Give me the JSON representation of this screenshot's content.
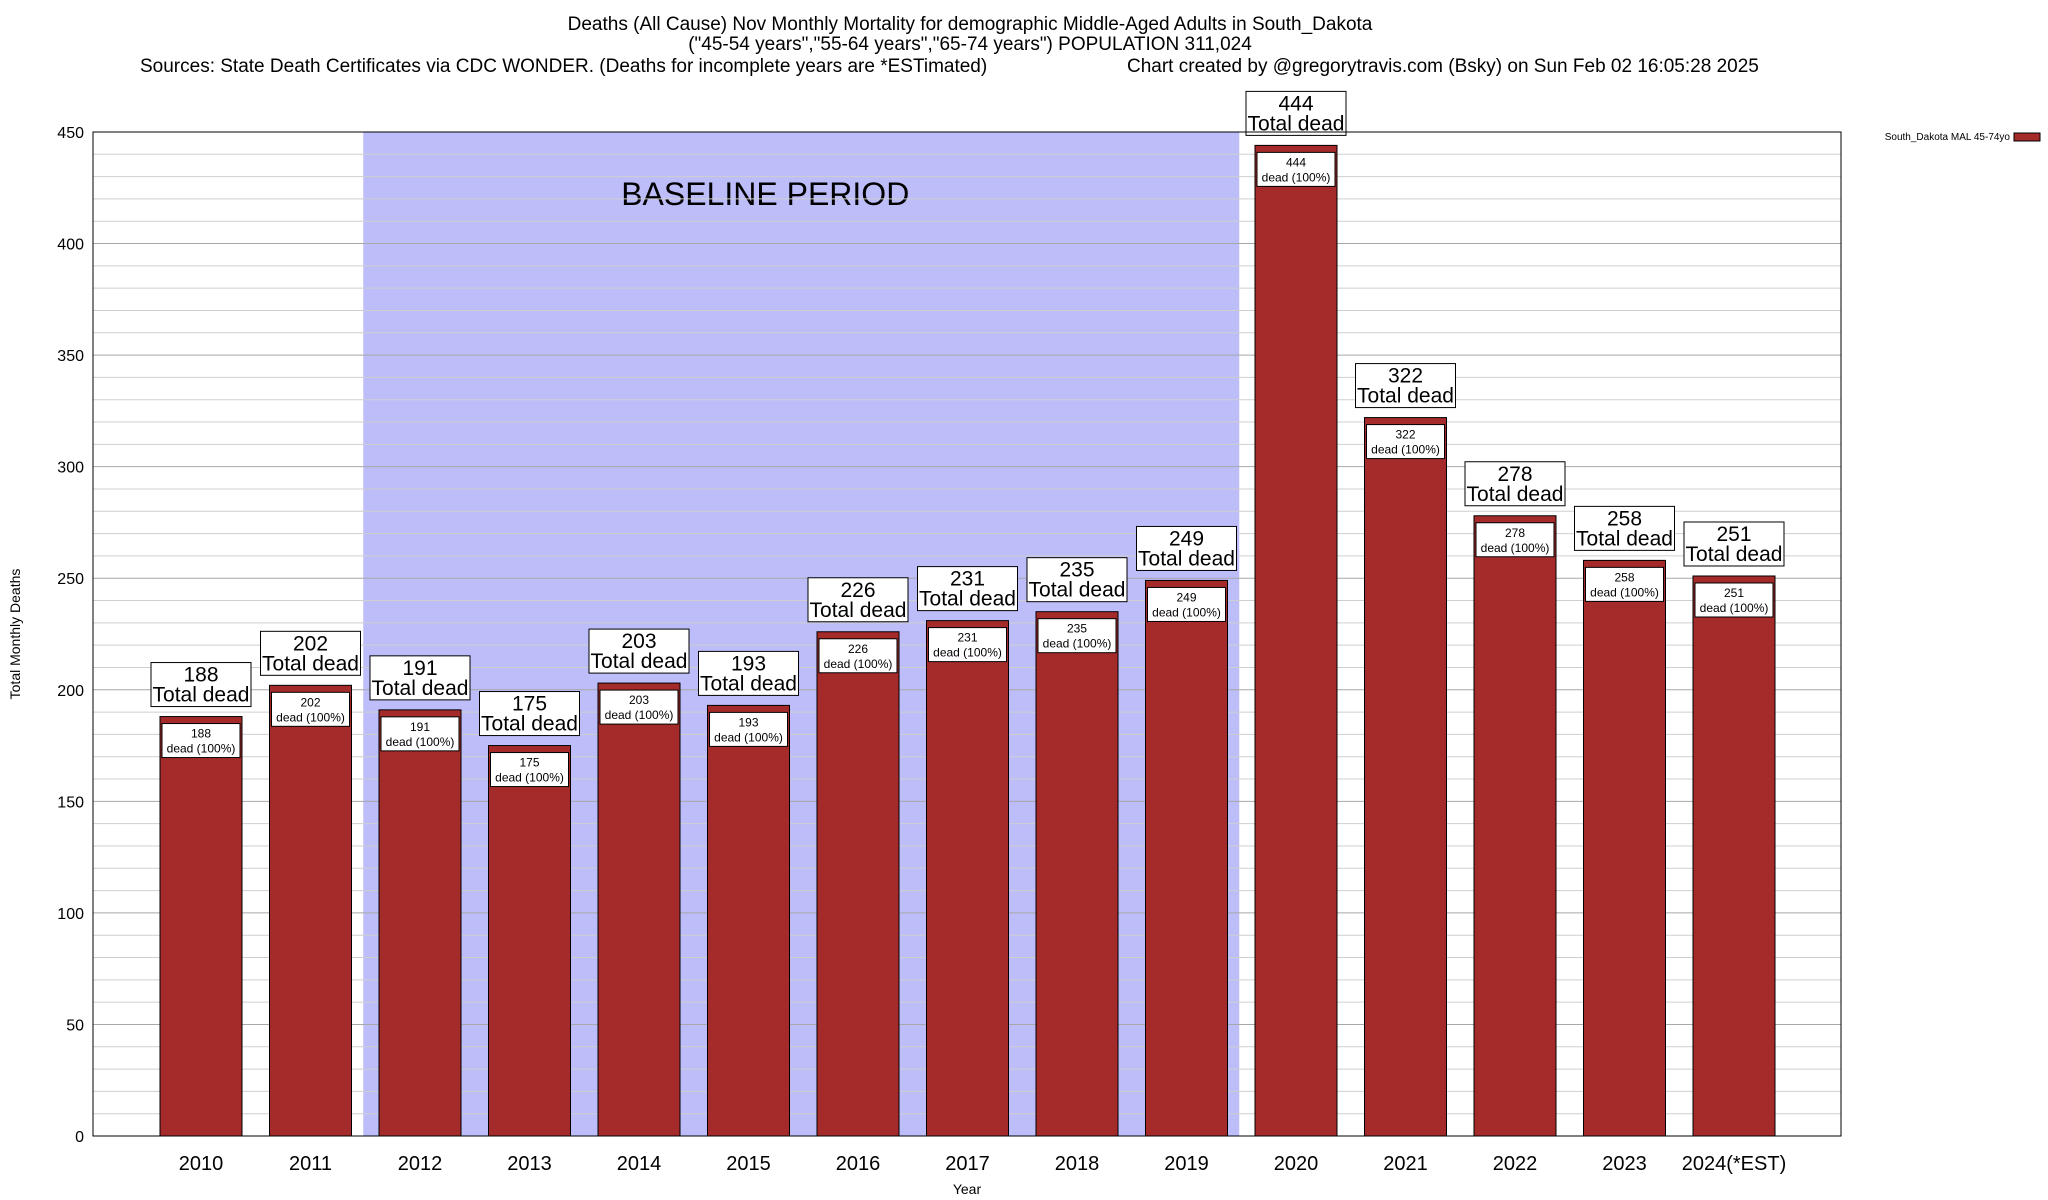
{
  "chart_data": {
    "type": "bar",
    "title_lines": [
      "Deaths (All Cause) Nov Monthly Mortality for demographic Middle-Aged Adults in South_Dakota",
      "(\"45-54 years\",\"55-64 years\",\"65-74 years\") POPULATION 311,024"
    ],
    "sources": "Sources: State Death Certificates via CDC WONDER. (Deaths for incomplete years are *ESTimated)",
    "credit": "Chart created by @gregorytravis.com (Bsky) on Sun Feb 02 16:05:28 2025",
    "xlabel": "Year",
    "ylabel": "Total Monthly Deaths",
    "ylim": [
      0,
      450
    ],
    "yticks": [
      0,
      50,
      100,
      150,
      200,
      250,
      300,
      350,
      400,
      450
    ],
    "minor_step": 10,
    "grid": true,
    "legend": {
      "placement": "top-right",
      "label": "South_Dakota MAL 45-74yo",
      "color": "#a52a2a"
    },
    "baseline": {
      "label": "BASELINE PERIOD",
      "start": "2012",
      "end": "2019",
      "color": "#bdbdfa"
    },
    "bar_color": "#a52a2a",
    "top_label_suffix": "Total dead",
    "inner_label_suffix": "dead (100%)",
    "categories": [
      "2010",
      "2011",
      "2012",
      "2013",
      "2014",
      "2015",
      "2016",
      "2017",
      "2018",
      "2019",
      "2020",
      "2021",
      "2022",
      "2023",
      "2024(*EST)"
    ],
    "values": [
      188,
      202,
      191,
      175,
      203,
      193,
      226,
      231,
      235,
      249,
      444,
      322,
      278,
      258,
      251
    ]
  }
}
